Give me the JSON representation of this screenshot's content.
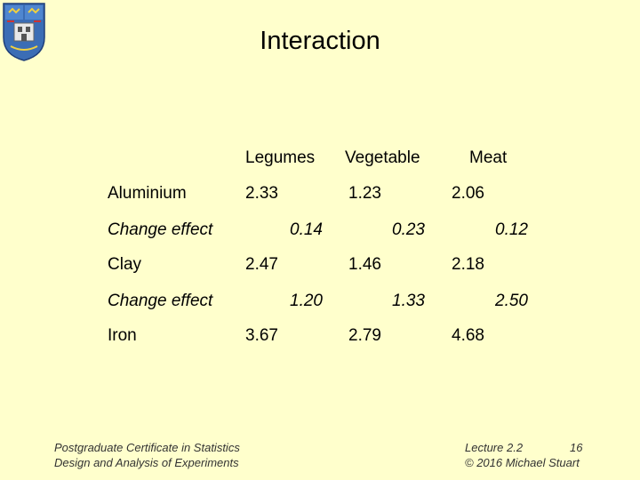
{
  "slide": {
    "title": "Interaction",
    "columns": [
      "Legumes",
      "Vegetable",
      "Meat"
    ],
    "rows": [
      {
        "label": "Aluminium",
        "values": [
          "2.33",
          "1.23",
          "2.06"
        ]
      },
      {
        "label": "Change effect",
        "values": [
          "0.14",
          "0.23",
          "0.12"
        ]
      },
      {
        "label": "Clay",
        "values": [
          "2.47",
          "1.46",
          "2.18"
        ]
      },
      {
        "label": "Change effect",
        "values": [
          "1.20",
          "1.33",
          "2.50"
        ]
      },
      {
        "label": "Iron",
        "values": [
          "3.67",
          "2.79",
          "4.68"
        ]
      }
    ],
    "footer_left": [
      "Postgraduate Certificate in Statistics",
      "Design and Analysis of Experiments"
    ],
    "footer_right": [
      "Lecture 2.2",
      "16",
      "© 2016 Michael Stuart"
    ]
  },
  "crest_icon": "college-crest-icon",
  "colors": {
    "background": "#ffffcc"
  }
}
